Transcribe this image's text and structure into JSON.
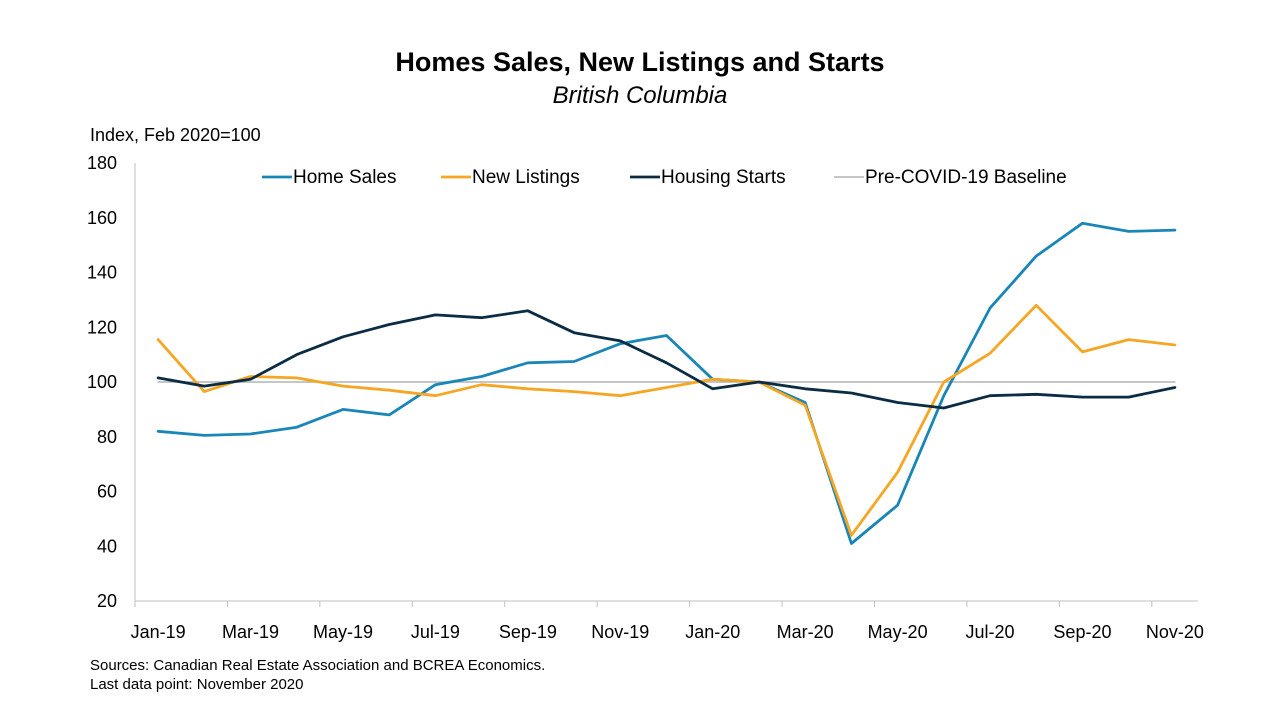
{
  "chart_data": {
    "type": "line",
    "title": "Homes Sales, New Listings and Starts",
    "subtitle": "British Columbia",
    "ylabel": "Index, Feb 2020=100",
    "ylim": [
      20,
      180
    ],
    "yticks": [
      20,
      40,
      60,
      80,
      100,
      120,
      140,
      160,
      180
    ],
    "x": [
      "Jan-19",
      "Feb-19",
      "Mar-19",
      "Apr-19",
      "May-19",
      "Jun-19",
      "Jul-19",
      "Aug-19",
      "Sep-19",
      "Oct-19",
      "Nov-19",
      "Dec-19",
      "Jan-20",
      "Feb-20",
      "Mar-20",
      "Apr-20",
      "May-20",
      "Jun-20",
      "Jul-20",
      "Aug-20",
      "Sep-20",
      "Oct-20",
      "Nov-20"
    ],
    "xtick_labels": [
      "Jan-19",
      "Mar-19",
      "May-19",
      "Jul-19",
      "Sep-19",
      "Nov-19",
      "Jan-20",
      "Mar-20",
      "May-20",
      "Jul-20",
      "Sep-20",
      "Nov-20"
    ],
    "series": [
      {
        "name": "Home Sales",
        "color": "#1a86b8",
        "values": [
          82,
          80.5,
          81,
          83.5,
          90,
          88,
          99,
          102,
          107,
          107.5,
          114,
          117,
          101,
          100,
          92.5,
          41,
          55,
          95,
          127,
          146,
          158,
          155,
          155.5
        ]
      },
      {
        "name": "New Listings",
        "color": "#f5a623",
        "values": [
          115.5,
          96.5,
          102,
          101.5,
          98.5,
          97,
          95,
          99,
          97.5,
          96.5,
          95,
          98,
          101,
          100,
          91.5,
          44,
          67,
          100,
          110.5,
          128,
          111,
          115.5,
          113.5
        ]
      },
      {
        "name": "Housing Starts",
        "color": "#0b2c42",
        "values": [
          101.5,
          98.5,
          101,
          110,
          116.5,
          121,
          124.5,
          123.5,
          126,
          118,
          115,
          107,
          97.5,
          100,
          97.5,
          96,
          92.5,
          90.5,
          95,
          95.5,
          94.5,
          94.5,
          98
        ]
      },
      {
        "name": "Pre-COVID-19 Baseline",
        "color": "#b3b3b3",
        "values": [
          100,
          100,
          100,
          100,
          100,
          100,
          100,
          100,
          100,
          100,
          100,
          100,
          100,
          100,
          100,
          100,
          100,
          100,
          100,
          100,
          100,
          100,
          100
        ]
      }
    ],
    "legend_position": "top",
    "grid": false
  },
  "footer": {
    "sources": "Sources: Canadian Real Estate Association and BCREA Economics.",
    "last_point": "Last data point: November 2020"
  }
}
